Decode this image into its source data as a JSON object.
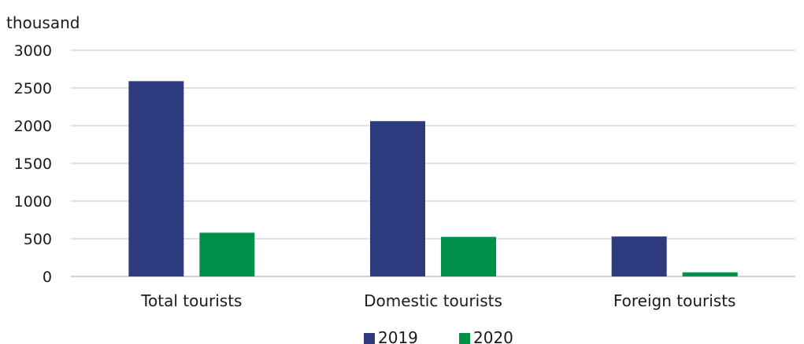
{
  "chart_data": {
    "type": "bar",
    "unit_label": "thousand",
    "categories": [
      "Total tourists",
      "Domestic tourists",
      "Foreign tourists"
    ],
    "series": [
      {
        "name": "2019",
        "color": "#2e3a7e",
        "values": [
          2590,
          2060,
          530
        ]
      },
      {
        "name": "2020",
        "color": "#00904a",
        "values": [
          580,
          525,
          55
        ]
      }
    ],
    "ylim": [
      0,
      3000
    ],
    "yticks": [
      0,
      500,
      1000,
      1500,
      2000,
      2500,
      3000
    ],
    "grid": true,
    "legend_position": "bottom"
  }
}
